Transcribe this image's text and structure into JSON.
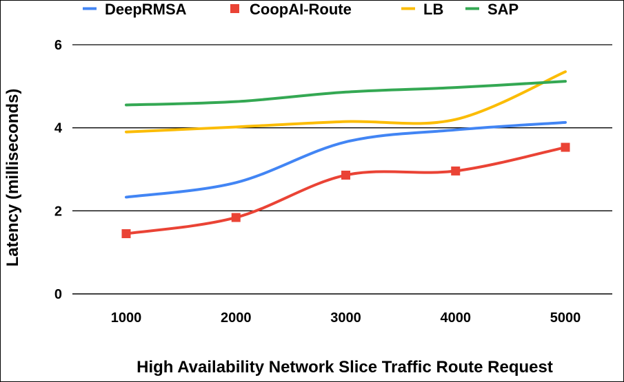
{
  "chart_data": {
    "type": "line",
    "title": "",
    "xlabel": "High Availability Network Slice Traffic Route Request",
    "ylabel": "Latency (milliseconds)",
    "x": [
      1000,
      2000,
      3000,
      4000,
      5000
    ],
    "x_tick_labels": [
      "1000",
      "2000",
      "3000",
      "4000",
      "5000"
    ],
    "ylim": [
      0,
      6
    ],
    "y_ticks": [
      0,
      2,
      4,
      6
    ],
    "y_tick_labels": [
      "0",
      "2",
      "4",
      "6"
    ],
    "grid": true,
    "legend_position": "top",
    "series": [
      {
        "name": "DeepRMSA",
        "color": "#4285F4",
        "marker": "none",
        "values": [
          2.33,
          2.68,
          3.66,
          3.95,
          4.13
        ]
      },
      {
        "name": "CoopAI-Route",
        "color": "#EA4335",
        "marker": "square",
        "values": [
          1.45,
          1.84,
          2.86,
          2.96,
          3.53
        ]
      },
      {
        "name": "LB",
        "color": "#FBBC04",
        "marker": "none",
        "values": [
          3.9,
          4.02,
          4.15,
          4.2,
          5.35
        ]
      },
      {
        "name": "SAP",
        "color": "#34A853",
        "marker": "none",
        "values": [
          4.55,
          4.63,
          4.86,
          4.97,
          5.12
        ]
      }
    ]
  }
}
